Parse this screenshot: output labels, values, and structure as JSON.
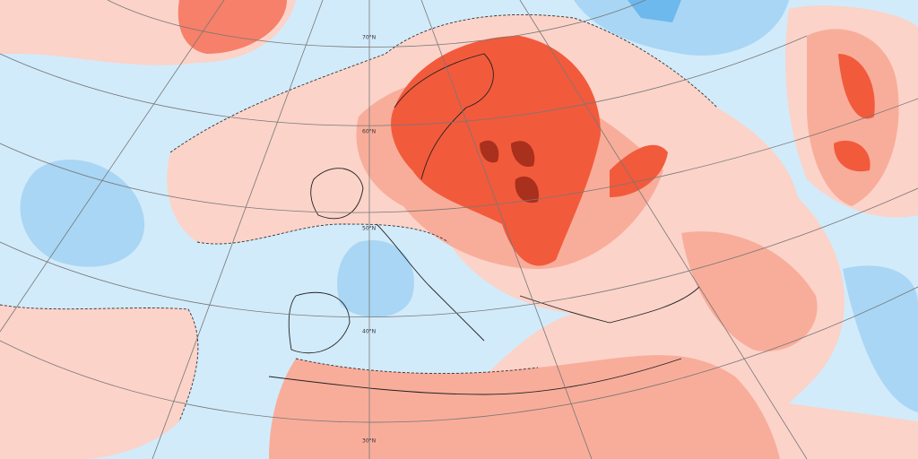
{
  "latitude_labels": [
    "70°N",
    "60°N",
    "50°N",
    "40°N",
    "30°N"
  ]
}
